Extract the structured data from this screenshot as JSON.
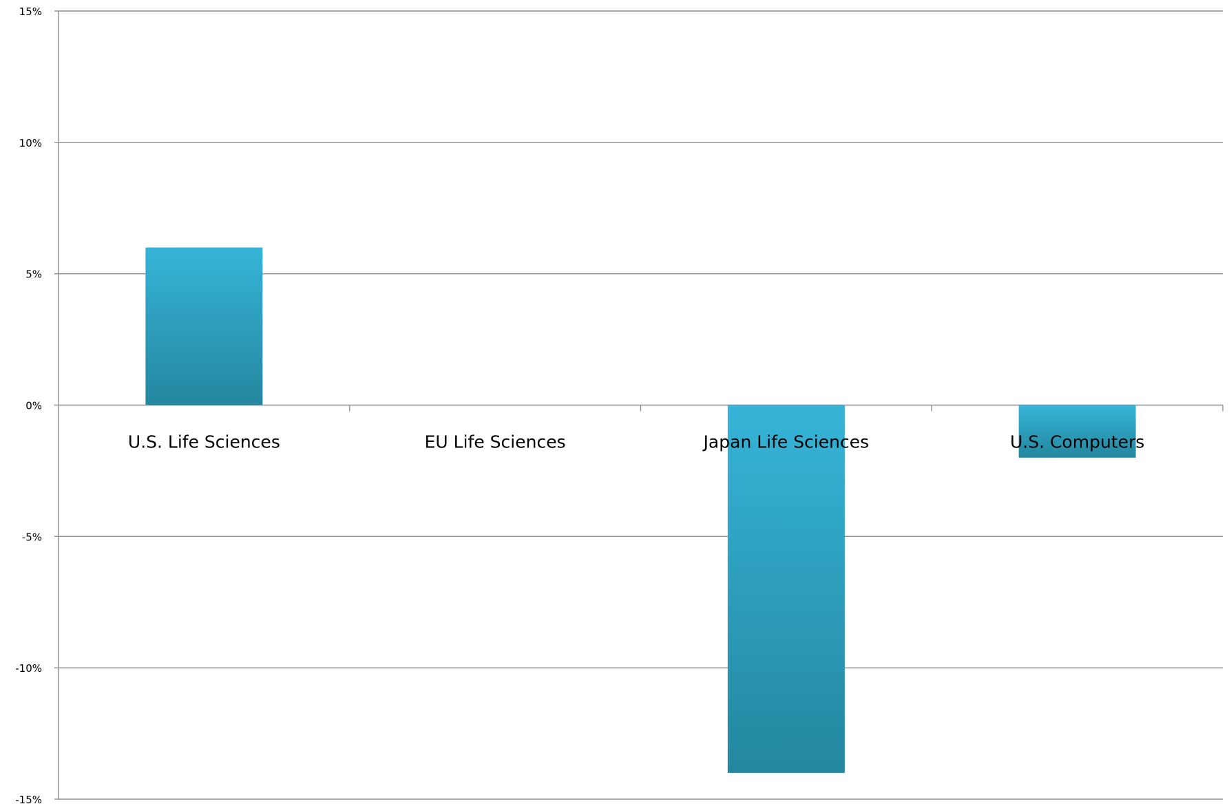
{
  "chart_data": {
    "type": "bar",
    "title": "",
    "xlabel": "",
    "ylabel": "",
    "categories": [
      "U.S. Life Sciences",
      "EU Life Sciences",
      "Japan Life Sciences",
      "U.S. Computers"
    ],
    "series": [
      {
        "values": [
          6,
          0,
          -14,
          -2
        ]
      }
    ],
    "ylim": [
      -15,
      15
    ],
    "y_ticks": [
      15,
      10,
      5,
      0,
      -5,
      -10,
      -15
    ],
    "y_tick_labels": [
      "15%",
      "10%",
      "5%",
      "0%",
      "-5%",
      "-10%",
      "-15%"
    ],
    "y_unit": "%",
    "grid": true,
    "legend": "none",
    "colors": {
      "bar_top": "#36b4d8",
      "bar_bottom": "#24879f",
      "grid": "#8c8c8c",
      "text": "#000000"
    }
  }
}
